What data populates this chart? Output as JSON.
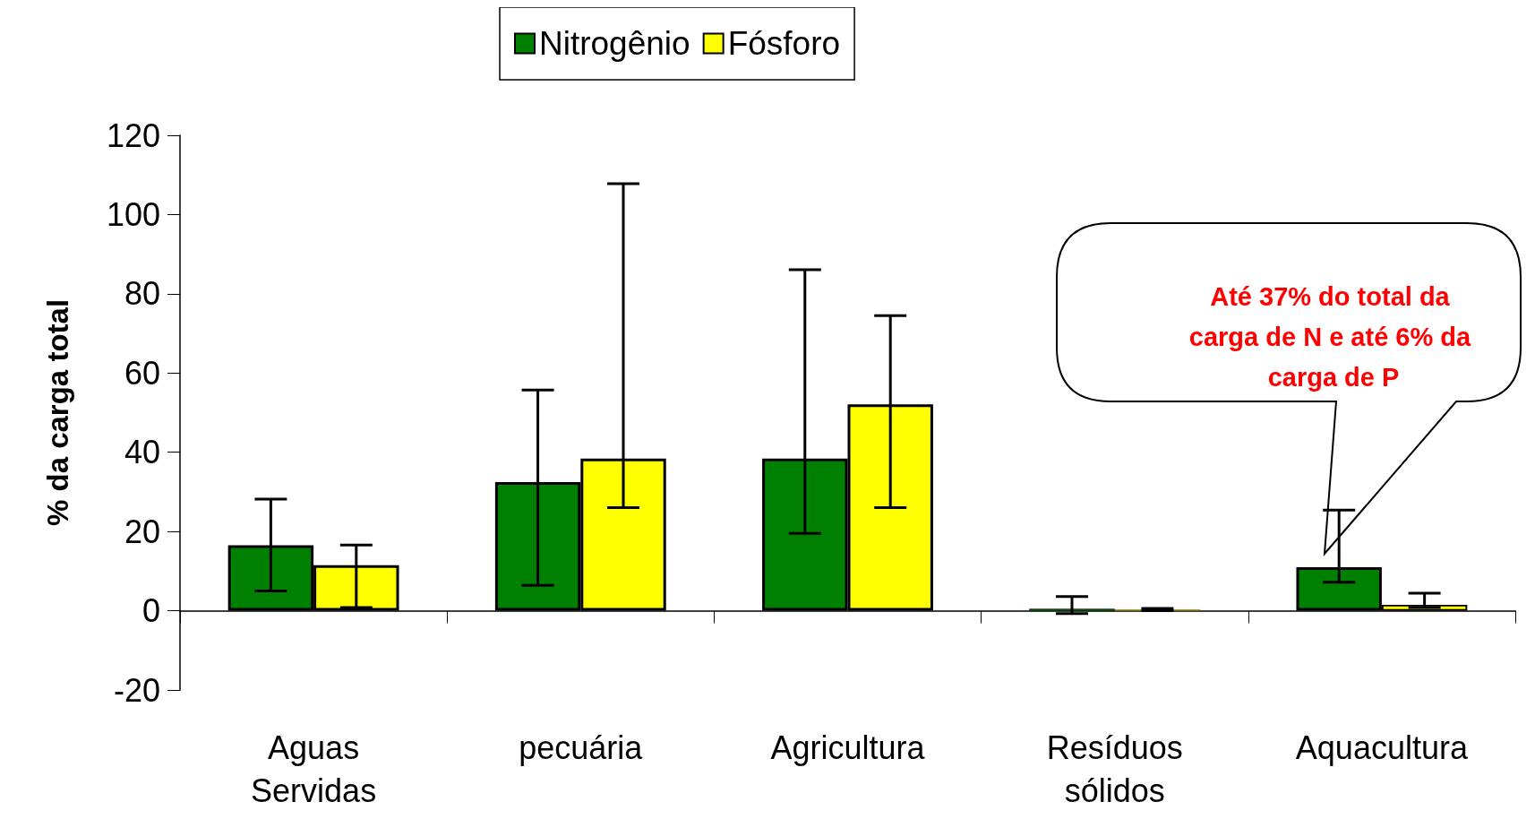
{
  "chart_data": {
    "type": "bar",
    "ylabel": "% da carga total",
    "categories": [
      "Aguas\nServidas",
      "pecuária",
      "Agricultura",
      "Resíduos\nsólidos",
      "Aquacultura"
    ],
    "series": [
      {
        "name": "Nitrogênio",
        "color": "#008000",
        "values": [
          16.5,
          32.5,
          38.4,
          0.5,
          11.0
        ],
        "errors": [
          [
            5.0,
            28.2
          ],
          [
            6.4,
            55.7
          ],
          [
            19.5,
            86.1
          ],
          [
            -0.7,
            3.6
          ],
          [
            7.2,
            25.4
          ]
        ]
      },
      {
        "name": "Fósforo",
        "color": "#ffff00",
        "values": [
          11.5,
          38.4,
          52.1,
          0.3,
          1.5
        ],
        "errors": [
          [
            0.8,
            16.6
          ],
          [
            26.0,
            107.8
          ],
          [
            26.0,
            74.5
          ],
          [
            0.0,
            0.6
          ],
          [
            0.8,
            4.4
          ]
        ]
      }
    ],
    "ylim": [
      -20,
      120
    ],
    "yticks": [
      -20,
      0,
      20,
      40,
      60,
      80,
      100,
      120
    ],
    "legend": "top",
    "annotations": [
      "Até 37% do total da carga de N e até 6% da carga de P"
    ]
  }
}
